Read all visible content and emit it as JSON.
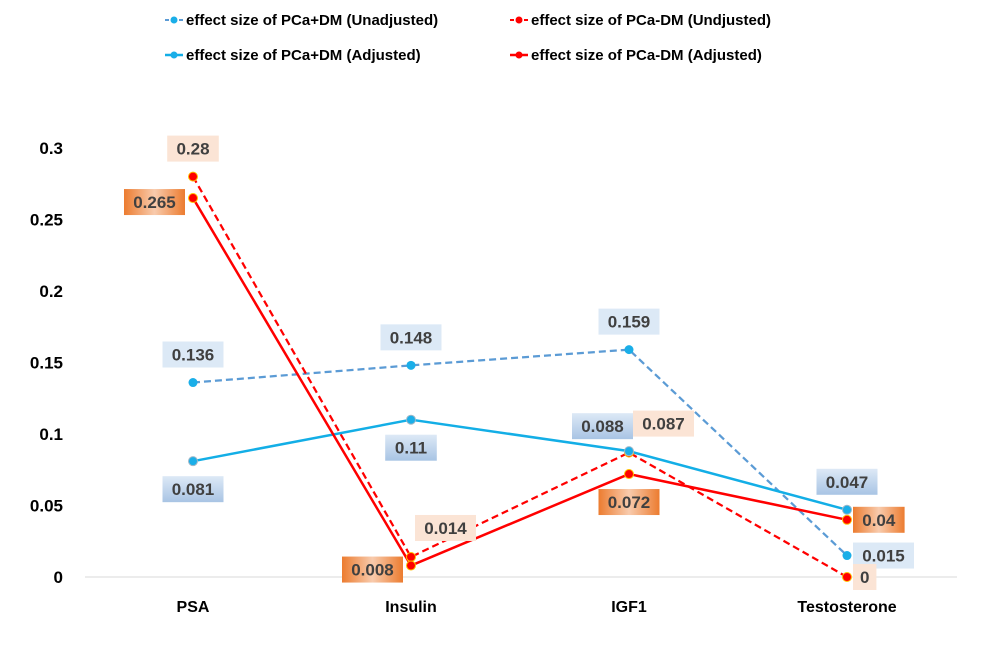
{
  "chart_data": {
    "type": "line",
    "title": "",
    "xlabel": "",
    "ylabel": "",
    "categories": [
      "PSA",
      "Insulin",
      "IGF1",
      "Testosterone"
    ],
    "ylim": [
      0,
      0.3
    ],
    "yticks": [
      "0",
      "0.05",
      "0.1",
      "0.15",
      "0.2",
      "0.25",
      "0.3"
    ],
    "ytick_values": [
      0,
      0.05,
      0.1,
      0.15,
      0.2,
      0.25,
      0.3
    ],
    "grid": false,
    "legend_position": "top",
    "series": [
      {
        "name": "effect size of PCa+DM (Unadjusted)",
        "values": [
          0.136,
          0.148,
          0.159,
          0.015
        ],
        "labels": [
          "0.136",
          "0.148",
          "0.159",
          "0.015"
        ],
        "color": "#5b9bd5",
        "marker_color": "#1aaee8",
        "dashed": true,
        "label_bg": "#dce9f6",
        "label_style": "flat",
        "label_pos": [
          "above",
          "above",
          "above",
          "right"
        ]
      },
      {
        "name": "effect size of PCa-DM (Undjusted)",
        "values": [
          0.28,
          0.014,
          0.087,
          0
        ],
        "labels": [
          "0.28",
          "0.014",
          "0.087",
          "0"
        ],
        "color": "#ff0000",
        "marker_color": "#ff0000",
        "dashed": true,
        "label_bg": "#fbe4d5",
        "label_style": "flat",
        "label_pos": [
          "above",
          "above-right",
          "above-right",
          "right"
        ]
      },
      {
        "name": "effect size of PCa+DM (Adjusted)",
        "values": [
          0.081,
          0.11,
          0.088,
          0.047
        ],
        "labels": [
          "0.081",
          "0.11",
          "0.088",
          "0.047"
        ],
        "color": "#13aee6",
        "marker_color": "#1aaee8",
        "dashed": false,
        "label_bg": "#bcd3ec",
        "label_style": "gradient-blue",
        "label_pos": [
          "below",
          "below",
          "above-left",
          "above"
        ]
      },
      {
        "name": "effect size of PCa-DM (Adjusted)",
        "values": [
          0.265,
          0.008,
          0.072,
          0.04
        ],
        "labels": [
          "0.265",
          "0.008",
          "0.072",
          "0.04"
        ],
        "color": "#ff0000",
        "marker_color": "#ff0000",
        "dashed": false,
        "label_bg": "#f4b183",
        "label_style": "gradient-orange",
        "label_pos": [
          "left",
          "left",
          "below",
          "right"
        ]
      }
    ]
  }
}
